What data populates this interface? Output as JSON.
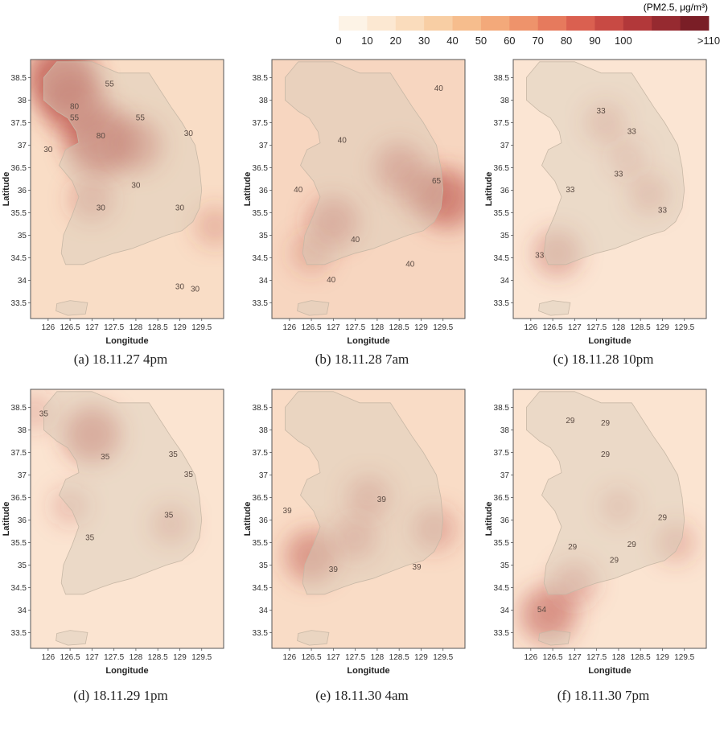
{
  "legend": {
    "title": "(PM2.5, μg/m³)",
    "tick_labels": [
      "0",
      "10",
      "20",
      "30",
      "40",
      "50",
      "60",
      "70",
      "80",
      "90",
      "100",
      ">110"
    ],
    "colors": [
      "#fdf3e6",
      "#fce8d2",
      "#fadcbc",
      "#f8cea4",
      "#f6bd8d",
      "#f3a97a",
      "#ee936b",
      "#e67a5d",
      "#da6050",
      "#c84a44",
      "#b2383a",
      "#962a30",
      "#7a1e26"
    ]
  },
  "axes": {
    "xlabel": "Longitude",
    "ylabel": "Latitude",
    "x_ticks": [
      "126",
      "126.5",
      "127",
      "127.5",
      "128",
      "128.5",
      "129",
      "129.5"
    ],
    "y_ticks": [
      "38.5",
      "38",
      "37.5",
      "37",
      "36.5",
      "36",
      "35.5",
      "35",
      "34.5",
      "34",
      "33.5"
    ]
  },
  "panels": [
    {
      "caption": "(a) 18.11.27 4pm",
      "background": "#f9ddc6",
      "hotspots": [
        {
          "lon": 126.3,
          "lat": 38.5,
          "level": 0.75
        },
        {
          "lon": 127.2,
          "lat": 37.1,
          "level": 0.75
        },
        {
          "lon": 126.6,
          "lat": 37.9,
          "level": 0.65
        },
        {
          "lon": 128.0,
          "lat": 37.0,
          "level": 0.5
        },
        {
          "lon": 127.0,
          "lat": 35.8,
          "level": 0.35
        },
        {
          "lon": 129.8,
          "lat": 35.2,
          "level": 0.3
        }
      ],
      "contour_labels": [
        {
          "text": "55",
          "lon": 127.4,
          "lat": 38.3
        },
        {
          "text": "80",
          "lon": 126.6,
          "lat": 37.8
        },
        {
          "text": "55",
          "lon": 126.6,
          "lat": 37.55
        },
        {
          "text": "55",
          "lon": 128.1,
          "lat": 37.55
        },
        {
          "text": "80",
          "lon": 127.2,
          "lat": 37.15
        },
        {
          "text": "30",
          "lon": 129.2,
          "lat": 37.2
        },
        {
          "text": "30",
          "lon": 126.0,
          "lat": 36.85
        },
        {
          "text": "30",
          "lon": 128.0,
          "lat": 36.05
        },
        {
          "text": "30",
          "lon": 127.2,
          "lat": 35.55
        },
        {
          "text": "30",
          "lon": 129.0,
          "lat": 35.55
        },
        {
          "text": "30",
          "lon": 129.0,
          "lat": 33.8
        },
        {
          "text": "30",
          "lon": 129.35,
          "lat": 33.75
        }
      ]
    },
    {
      "caption": "(b) 18.11.28 7am",
      "background": "#f7d6c0",
      "hotspots": [
        {
          "lon": 129.6,
          "lat": 35.8,
          "level": 0.6
        },
        {
          "lon": 128.5,
          "lat": 36.5,
          "level": 0.45
        },
        {
          "lon": 127.0,
          "lat": 35.3,
          "level": 0.45
        },
        {
          "lon": 129.0,
          "lat": 36.0,
          "level": 0.4
        },
        {
          "lon": 126.5,
          "lat": 34.6,
          "level": 0.3
        }
      ],
      "contour_labels": [
        {
          "text": "40",
          "lon": 129.4,
          "lat": 38.2
        },
        {
          "text": "40",
          "lon": 127.2,
          "lat": 37.05
        },
        {
          "text": "40",
          "lon": 126.2,
          "lat": 35.95
        },
        {
          "text": "65",
          "lon": 129.35,
          "lat": 36.15
        },
        {
          "text": "40",
          "lon": 127.5,
          "lat": 34.85
        },
        {
          "text": "40",
          "lon": 128.75,
          "lat": 34.3
        },
        {
          "text": "40",
          "lon": 126.95,
          "lat": 33.95
        }
      ]
    },
    {
      "caption": "(c) 18.11.28 10pm",
      "background": "#fbe5d3",
      "hotspots": [
        {
          "lon": 126.6,
          "lat": 34.6,
          "level": 0.4
        },
        {
          "lon": 127.7,
          "lat": 37.5,
          "level": 0.3
        },
        {
          "lon": 128.7,
          "lat": 35.9,
          "level": 0.3
        },
        {
          "lon": 128.2,
          "lat": 36.7,
          "level": 0.25
        }
      ],
      "contour_labels": [
        {
          "text": "33",
          "lon": 127.6,
          "lat": 37.7
        },
        {
          "text": "33",
          "lon": 128.3,
          "lat": 37.25
        },
        {
          "text": "33",
          "lon": 128.0,
          "lat": 36.3
        },
        {
          "text": "33",
          "lon": 126.9,
          "lat": 35.95
        },
        {
          "text": "33",
          "lon": 129.0,
          "lat": 35.5
        },
        {
          "text": "33",
          "lon": 126.2,
          "lat": 34.5
        }
      ]
    },
    {
      "caption": "(d) 18.11.29 1pm",
      "background": "#fbe4d1",
      "hotspots": [
        {
          "lon": 127.0,
          "lat": 37.9,
          "level": 0.55
        },
        {
          "lon": 126.5,
          "lat": 36.3,
          "level": 0.25
        },
        {
          "lon": 128.8,
          "lat": 35.9,
          "level": 0.3
        },
        {
          "lon": 125.7,
          "lat": 38.4,
          "level": 0.25
        }
      ],
      "contour_labels": [
        {
          "text": "35",
          "lon": 125.9,
          "lat": 38.3
        },
        {
          "text": "35",
          "lon": 127.3,
          "lat": 37.35
        },
        {
          "text": "35",
          "lon": 128.85,
          "lat": 37.4
        },
        {
          "text": "35",
          "lon": 129.2,
          "lat": 36.95
        },
        {
          "text": "35",
          "lon": 128.75,
          "lat": 36.05
        },
        {
          "text": "35",
          "lon": 126.95,
          "lat": 35.55
        }
      ]
    },
    {
      "caption": "(e) 18.11.30 4am",
      "background": "#f9dcc6",
      "hotspots": [
        {
          "lon": 126.5,
          "lat": 35.2,
          "level": 0.5
        },
        {
          "lon": 127.8,
          "lat": 36.5,
          "level": 0.35
        },
        {
          "lon": 129.3,
          "lat": 35.8,
          "level": 0.35
        },
        {
          "lon": 127.5,
          "lat": 35.6,
          "level": 0.35
        }
      ],
      "contour_labels": [
        {
          "text": "39",
          "lon": 128.1,
          "lat": 36.4
        },
        {
          "text": "39",
          "lon": 125.95,
          "lat": 36.15
        },
        {
          "text": "39",
          "lon": 127.0,
          "lat": 34.85
        },
        {
          "text": "39",
          "lon": 128.9,
          "lat": 34.9
        }
      ]
    },
    {
      "caption": "(f) 18.11.30 7pm",
      "background": "#fbe4d1",
      "hotspots": [
        {
          "lon": 126.4,
          "lat": 33.9,
          "level": 0.55
        },
        {
          "lon": 127.0,
          "lat": 34.6,
          "level": 0.35
        },
        {
          "lon": 129.3,
          "lat": 35.5,
          "level": 0.3
        },
        {
          "lon": 128.0,
          "lat": 36.3,
          "level": 0.25
        }
      ],
      "contour_labels": [
        {
          "text": "29",
          "lon": 126.9,
          "lat": 38.15
        },
        {
          "text": "29",
          "lon": 127.7,
          "lat": 38.1
        },
        {
          "text": "29",
          "lon": 127.7,
          "lat": 37.4
        },
        {
          "text": "29",
          "lon": 129.0,
          "lat": 36.0
        },
        {
          "text": "29",
          "lon": 126.95,
          "lat": 35.35
        },
        {
          "text": "29",
          "lon": 128.3,
          "lat": 35.4
        },
        {
          "text": "29",
          "lon": 127.9,
          "lat": 35.05
        },
        {
          "text": "54",
          "lon": 126.25,
          "lat": 33.95
        }
      ]
    }
  ]
}
